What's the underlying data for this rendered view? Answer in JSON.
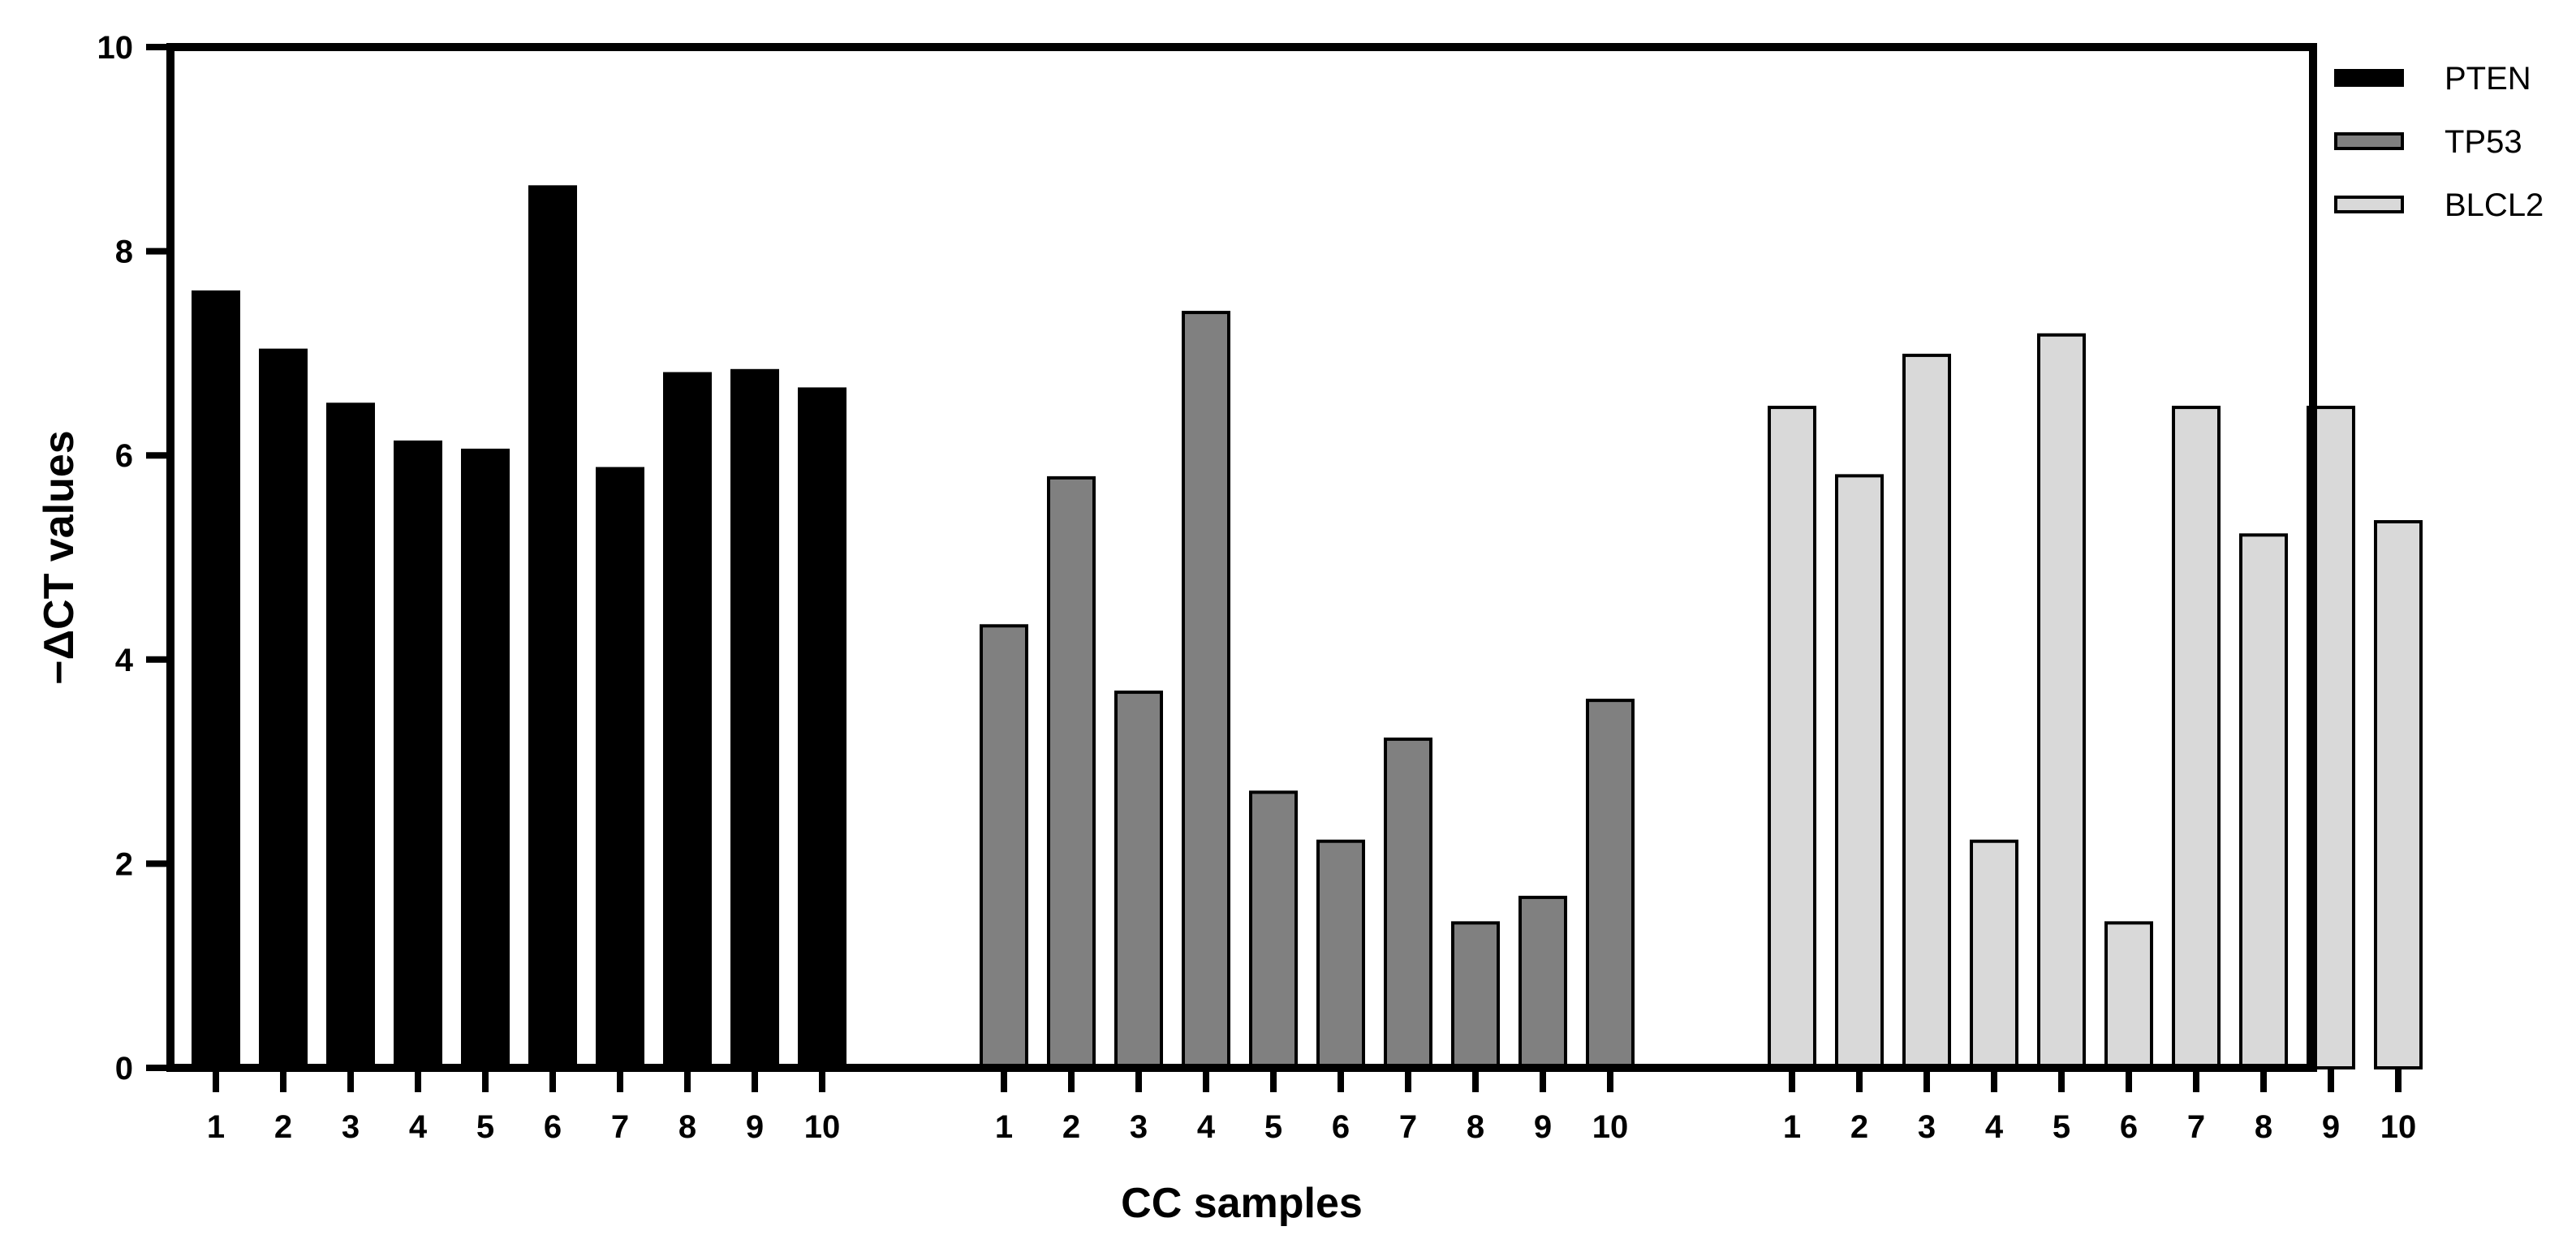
{
  "chart_data": {
    "type": "bar",
    "title": "",
    "xlabel": "CC samples",
    "ylabel": "−ΔCT values",
    "ylim": [
      0,
      10
    ],
    "yticks": [
      0,
      2,
      4,
      6,
      8,
      10
    ],
    "legend_position": "top-right",
    "categories": [
      "1",
      "2",
      "3",
      "4",
      "5",
      "6",
      "7",
      "8",
      "9",
      "10"
    ],
    "series": [
      {
        "name": "PTEN",
        "color": "#000000",
        "values": [
          7.6,
          7.03,
          6.5,
          6.13,
          6.05,
          8.63,
          5.87,
          6.8,
          6.83,
          6.65
        ]
      },
      {
        "name": "TP53",
        "color": "#808080",
        "values": [
          4.33,
          5.78,
          3.68,
          7.4,
          2.7,
          2.22,
          3.22,
          1.42,
          1.67,
          3.6
        ]
      },
      {
        "name": "BLCL2",
        "color": "#d9d9d9",
        "values": [
          6.47,
          5.8,
          6.98,
          2.22,
          7.18,
          1.42,
          6.47,
          5.22,
          6.47,
          5.35
        ]
      }
    ]
  }
}
